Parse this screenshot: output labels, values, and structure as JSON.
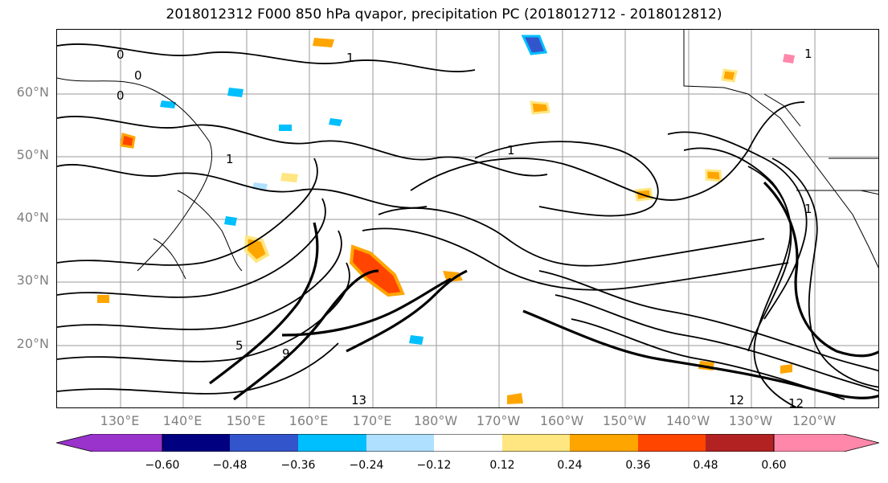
{
  "title": "2018012312 F000 850 hPa qvapor, precipitation PC (2018012712 - 2018012812)",
  "map": {
    "lat_labels": [
      "60°N",
      "50°N",
      "40°N",
      "30°N",
      "20°N"
    ],
    "lon_labels": [
      "130°E",
      "140°E",
      "150°E",
      "160°E",
      "170°E",
      "180°W",
      "170°W",
      "160°W",
      "150°W",
      "140°W",
      "130°W",
      "120°W"
    ],
    "contour_labels": [
      "0",
      "0",
      "0",
      "1",
      "1",
      "1",
      "1",
      "1",
      "5",
      "9",
      "12",
      "12",
      "13"
    ],
    "colors": {
      "land_outline": "#000000",
      "grid": "#9a9a9a",
      "contour": "#000000"
    }
  },
  "colorbar": {
    "colors": [
      "#9933cc",
      "#000080",
      "#3355cc",
      "#00bfff",
      "#b0e0ff",
      "#ffffff",
      "#ffe680",
      "#ffa500",
      "#ff4500",
      "#b22222",
      "#ff88aa"
    ],
    "tick_labels": [
      "−0.60",
      "−0.48",
      "−0.36",
      "−0.24",
      "−0.12",
      "0.12",
      "0.24",
      "0.36",
      "0.48",
      "0.60"
    ]
  }
}
